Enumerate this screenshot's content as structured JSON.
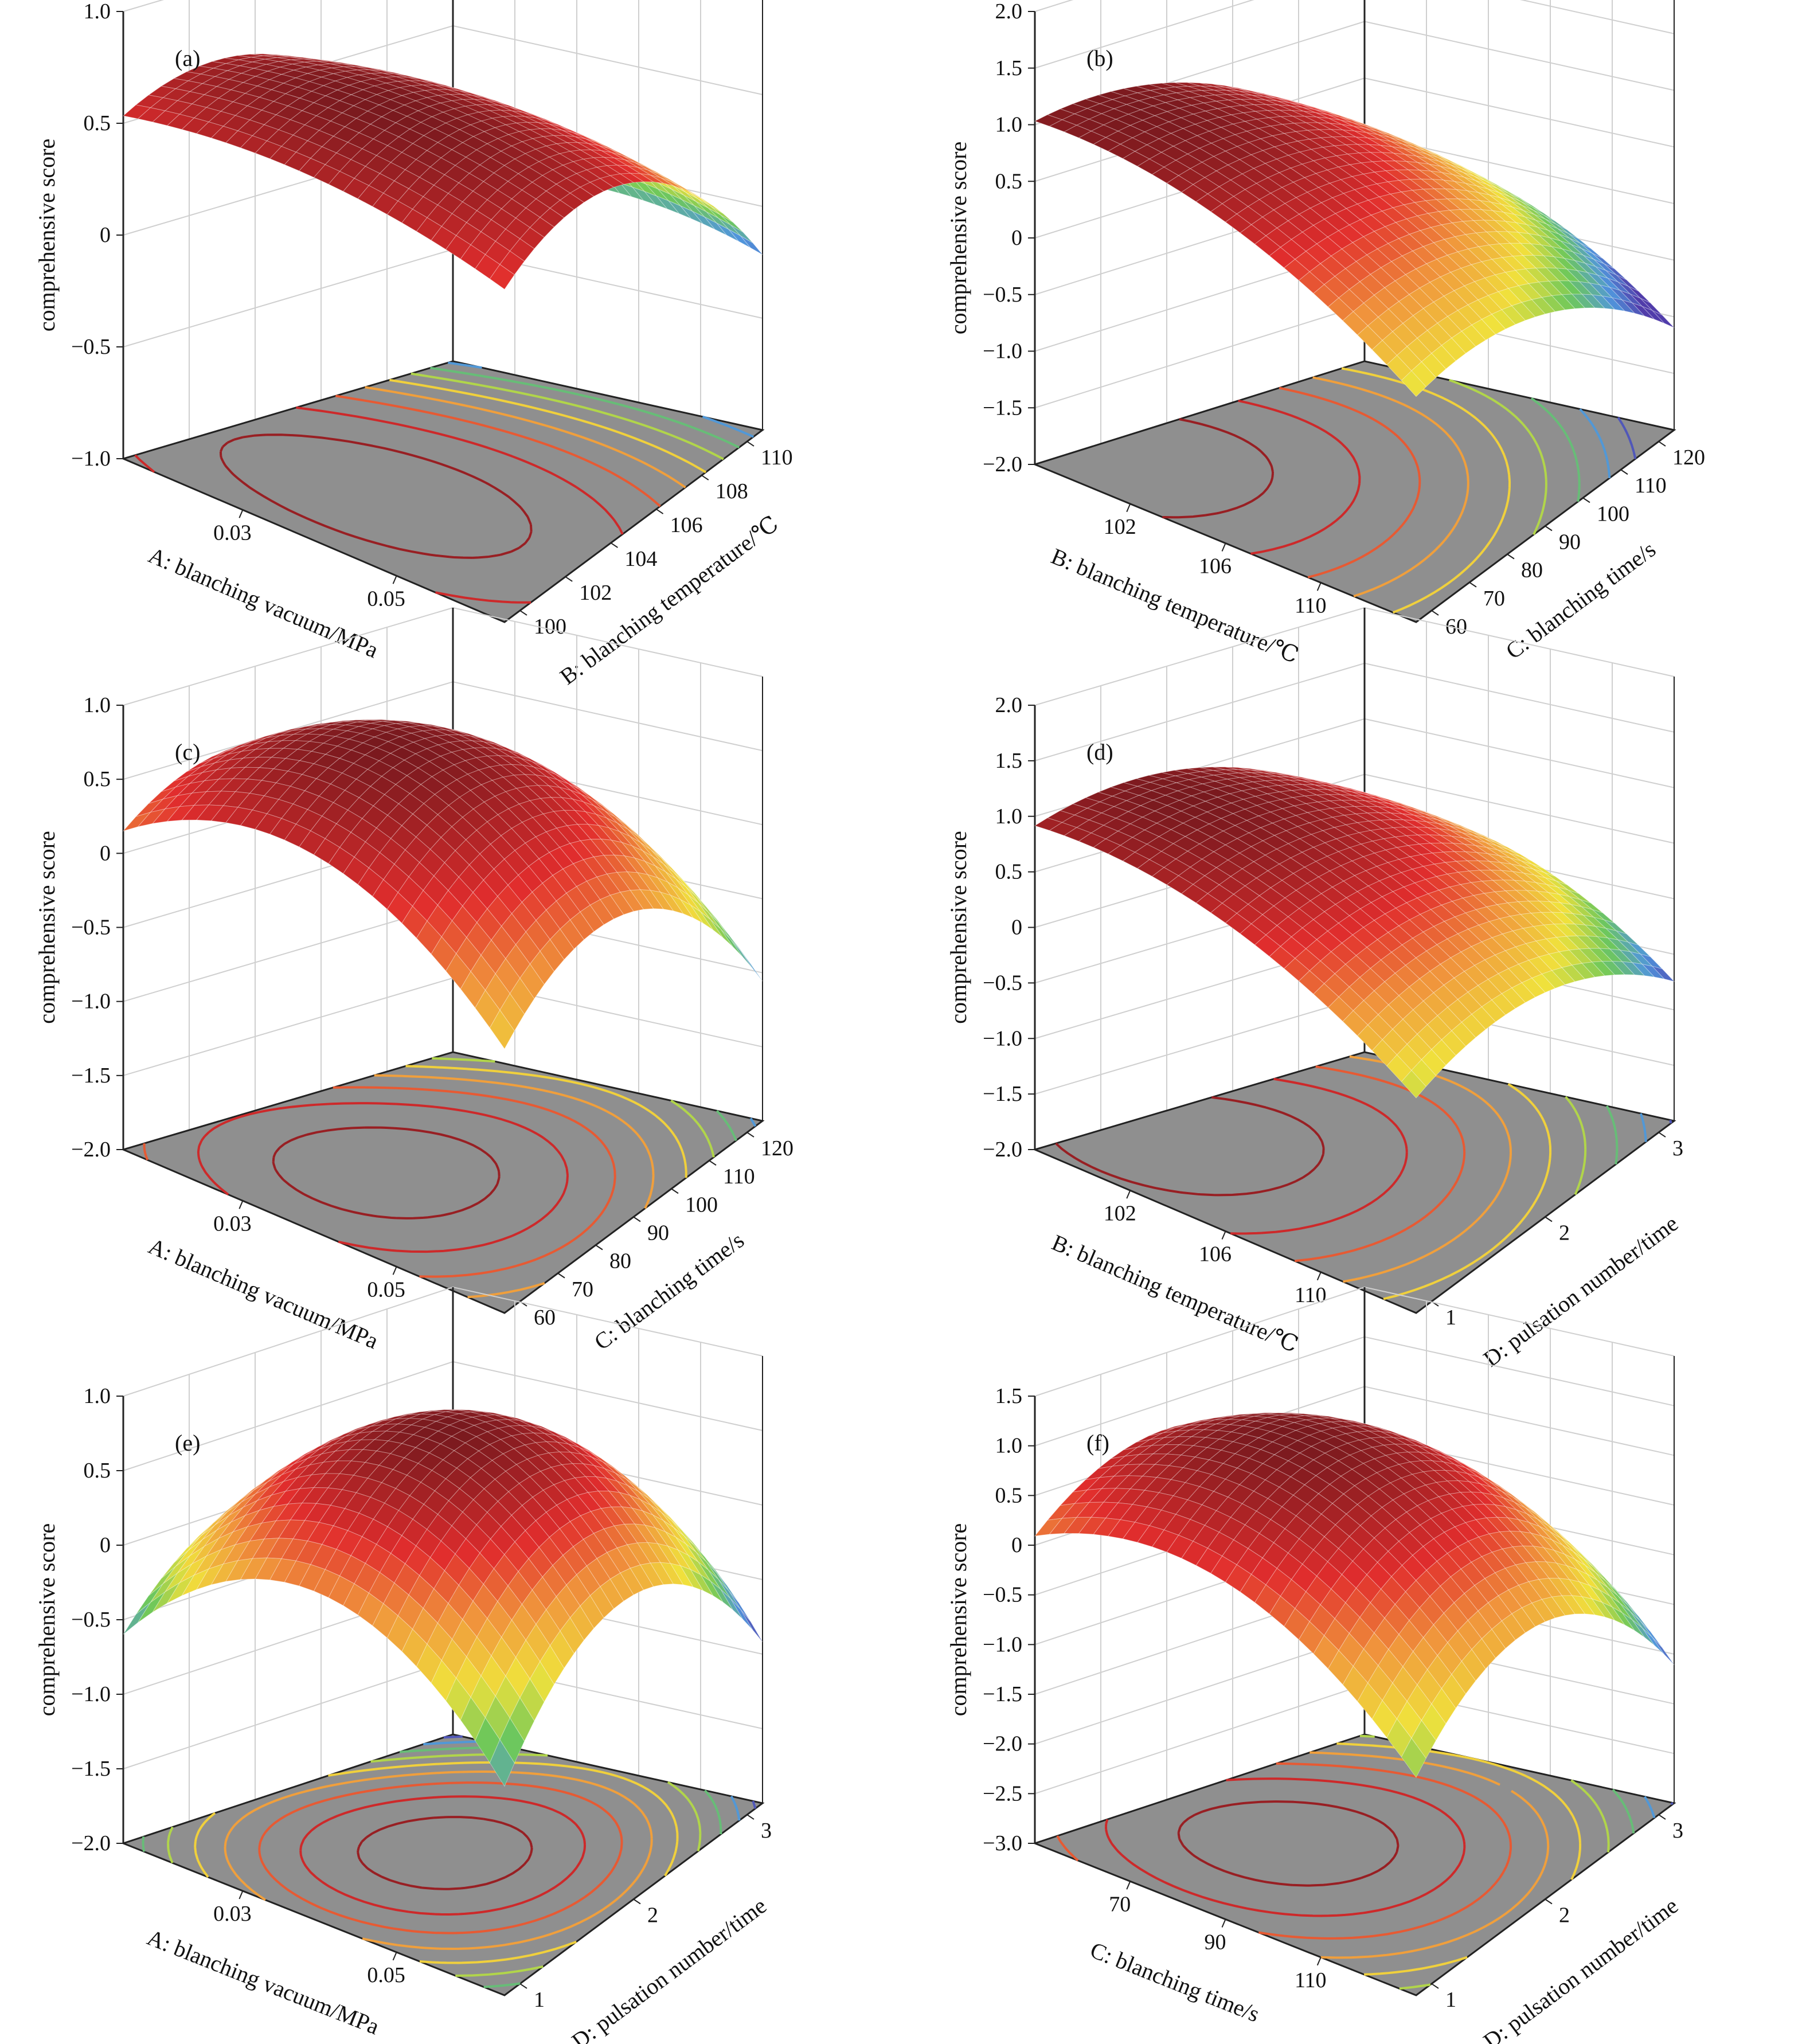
{
  "figure": {
    "panels": [
      {
        "label": "(a)",
        "zlabel": "comprehensive score",
        "zticks": [
          "1.0",
          "0.5",
          "0",
          "−0.5",
          "−1.0"
        ],
        "xlabel": "A: blanching vacuum/MPa",
        "xticks": [
          "0.03",
          "0.05"
        ],
        "ylabel": "B: blanching temperature/℃",
        "yticks": [
          "100",
          "102",
          "104",
          "106",
          "108",
          "110"
        ]
      },
      {
        "label": "(b)",
        "zlabel": "comprehensive score",
        "zticks": [
          "2.0",
          "1.5",
          "1.0",
          "0.5",
          "0",
          "−0.5",
          "−1.0",
          "−1.5",
          "−2.0"
        ],
        "xlabel": "B: blanching temperature/℃",
        "xticks": [
          "102",
          "106",
          "110"
        ],
        "ylabel": "C: blanching time/s",
        "yticks": [
          "60",
          "70",
          "80",
          "90",
          "100",
          "110",
          "120"
        ]
      },
      {
        "label": "(c)",
        "zlabel": "comprehensive score",
        "zticks": [
          "1.0",
          "0.5",
          "0",
          "−0.5",
          "−1.0",
          "−1.5",
          "−2.0"
        ],
        "xlabel": "A: blanching vacuum/MPa",
        "xticks": [
          "0.03",
          "0.05"
        ],
        "ylabel": "C: blanching time/s",
        "yticks": [
          "60",
          "70",
          "80",
          "90",
          "100",
          "110",
          "120"
        ]
      },
      {
        "label": "(d)",
        "zlabel": "comprehensive score",
        "zticks": [
          "2.0",
          "1.5",
          "1.0",
          "0.5",
          "0",
          "−0.5",
          "−1.0",
          "−1.5",
          "−2.0"
        ],
        "xlabel": "B: blanching temperature/℃",
        "xticks": [
          "102",
          "106",
          "110"
        ],
        "ylabel": "D: pulsation number/time",
        "yticks": [
          "1",
          "2",
          "3"
        ]
      },
      {
        "label": "(e)",
        "zlabel": "comprehensive score",
        "zticks": [
          "1.0",
          "0.5",
          "0",
          "−0.5",
          "−1.0",
          "−1.5",
          "−2.0"
        ],
        "xlabel": "A: blanching vacuum/MPa",
        "xticks": [
          "0.03",
          "0.05"
        ],
        "ylabel": "D: pulsation number/time",
        "yticks": [
          "1",
          "2",
          "3"
        ]
      },
      {
        "label": "(f)",
        "zlabel": "comprehensive score",
        "zticks": [
          "1.5",
          "1.0",
          "0.5",
          "0",
          "−0.5",
          "−1.0",
          "−1.5",
          "−2.0",
          "−2.5",
          "−3.0"
        ],
        "xlabel": "C: blanching time/s",
        "xticks": [
          "70",
          "90",
          "110"
        ],
        "ylabel": "D: pulsation number/time",
        "yticks": [
          "1",
          "2",
          "3"
        ]
      }
    ]
  },
  "chart_data": [
    {
      "type": "surface",
      "panel": "(a)",
      "xlabel": "A: blanching vacuum/MPa",
      "ylabel": "B: blanching temperature/℃",
      "zlabel": "comprehensive score",
      "xlim": [
        0.02,
        0.06
      ],
      "ylim": [
        100,
        110
      ],
      "zlim": [
        -1.0,
        1.0
      ],
      "z_peak": 0.75,
      "z_min": -0.3,
      "colors": {
        "high": "#c0282a",
        "mid": "#f5d43a",
        "low": "#5a3da0"
      }
    },
    {
      "type": "surface",
      "panel": "(b)",
      "xlabel": "B: blanching temperature/℃",
      "ylabel": "C: blanching time/s",
      "zlabel": "comprehensive score",
      "xlim": [
        100,
        110
      ],
      "ylim": [
        60,
        120
      ],
      "zlim": [
        -2.0,
        2.0
      ],
      "z_peak": 1.1,
      "z_min": -0.8
    },
    {
      "type": "surface",
      "panel": "(c)",
      "xlabel": "A: blanching vacuum/MPa",
      "ylabel": "C: blanching time/s",
      "zlabel": "comprehensive score",
      "xlim": [
        0.02,
        0.06
      ],
      "ylim": [
        60,
        120
      ],
      "zlim": [
        -2.0,
        1.0
      ],
      "z_peak": 0.9,
      "z_min": -1.3
    },
    {
      "type": "surface",
      "panel": "(d)",
      "xlabel": "B: blanching temperature/℃",
      "ylabel": "D: pulsation number/time",
      "zlabel": "comprehensive score",
      "xlim": [
        100,
        110
      ],
      "ylim": [
        1,
        3
      ],
      "zlim": [
        -2.0,
        2.0
      ],
      "z_peak": 1.1,
      "z_min": -0.8
    },
    {
      "type": "surface",
      "panel": "(e)",
      "xlabel": "A: blanching vacuum/MPa",
      "ylabel": "D: pulsation number/time",
      "zlabel": "comprehensive score",
      "xlim": [
        0.02,
        0.06
      ],
      "ylim": [
        1,
        3
      ],
      "zlim": [
        -2.0,
        1.0
      ],
      "z_peak": 0.85,
      "z_min": -0.9
    },
    {
      "type": "surface",
      "panel": "(f)",
      "xlabel": "C: blanching time/s",
      "ylabel": "D: pulsation number/time",
      "zlabel": "comprehensive score",
      "xlim": [
        60,
        120
      ],
      "ylim": [
        1,
        3
      ],
      "zlim": [
        -3.0,
        1.5
      ],
      "z_peak": 1.1,
      "z_min": -1.7
    }
  ]
}
